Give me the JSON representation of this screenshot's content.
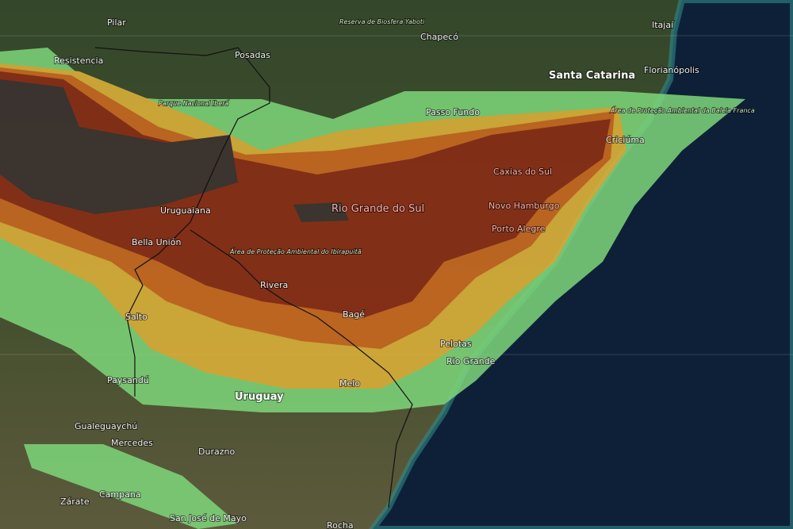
{
  "labels": {
    "pilar": "Pilar",
    "yaboti": "Reserva de Biosfera Yaboti",
    "chapeco": "Chapecó",
    "itajai": "Itajaí",
    "resistencia": "Resistencia",
    "posadas": "Posadas",
    "santa_catarina": "Santa Catarina",
    "florianopolis": "Florianópolis",
    "ibera": "Parque Nacional Iberá",
    "passo_fundo": "Passo Fundo",
    "baleia_franca": "Área de Proteção Ambiental da Baleia Franca",
    "criciuma": "Criciúma",
    "caxias": "Caxias do Sul",
    "rgs": "Rio Grande do Sul",
    "novo_hamburgo": "Novo Hamburgo",
    "uruguaiana": "Uruguaiana",
    "porto_alegre": "Porto Alegre",
    "bella_union": "Bella Unión",
    "ibirapuita": "Área de Proteção Ambiental do Ibirapuitã",
    "rivera": "Rivera",
    "salto": "Salto",
    "bage": "Bagé",
    "pelotas": "Pelotas",
    "rio_grande": "Rio Grande",
    "paysandu": "Paysandú",
    "melo": "Melo",
    "uruguay": "Uruguay",
    "gualeguaychu": "Gualeguaychú",
    "mercedes": "Mercedes",
    "durazno": "Durazno",
    "zarate": "Zárate",
    "campana": "Campana",
    "san_jose": "San José de Mayo",
    "rocha": "Rocha"
  }
}
